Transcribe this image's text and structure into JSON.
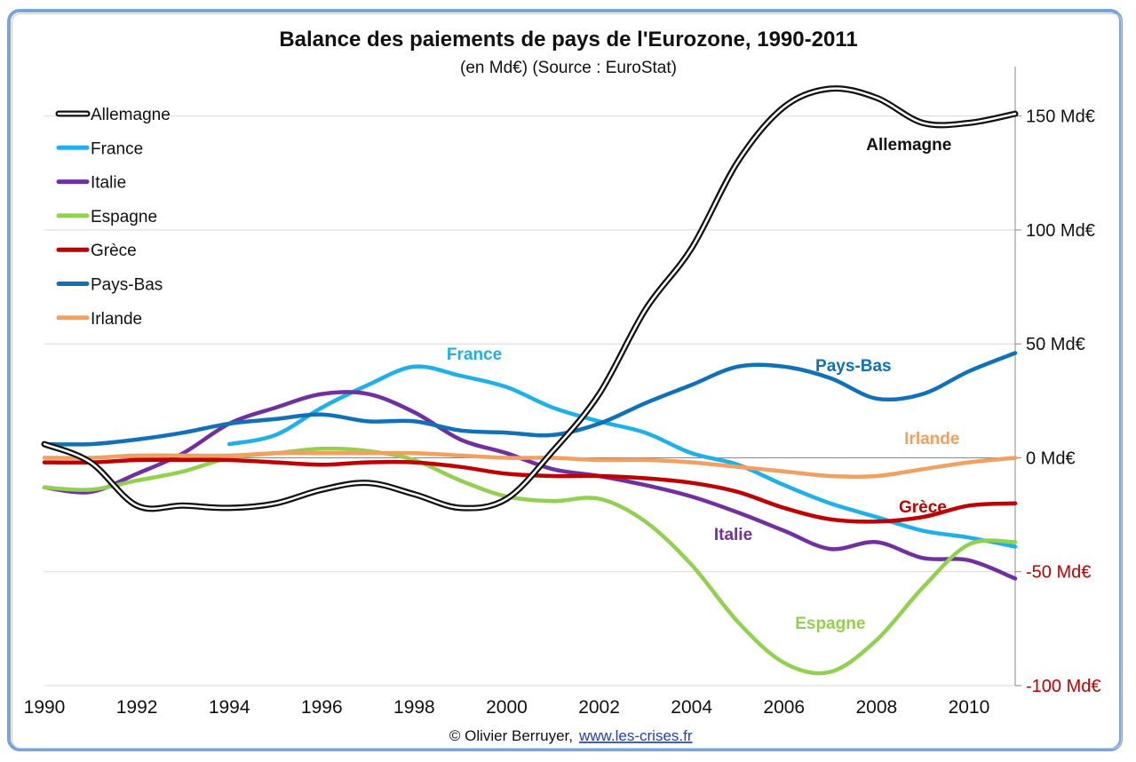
{
  "chart_data": {
    "type": "line",
    "title": "Balance des paiements de pays de l'Eurozone, 1990-2011",
    "subtitle": "(en Md€) (Source : EuroStat)",
    "xlabel": "",
    "ylabel": "",
    "xlim": [
      1990,
      2011
    ],
    "ylim": [
      -100,
      160
    ],
    "x_ticks": [
      "1990",
      "1992",
      "1994",
      "1996",
      "1998",
      "2000",
      "2002",
      "2004",
      "2006",
      "2008",
      "2010"
    ],
    "y_ticks": [
      {
        "value": 150,
        "label": "150 Md€"
      },
      {
        "value": 100,
        "label": "100 Md€"
      },
      {
        "value": 50,
        "label": "50 Md€"
      },
      {
        "value": 0,
        "label": "0 Md€"
      },
      {
        "value": -50,
        "label": "-50 Md€"
      },
      {
        "value": -100,
        "label": "-100 Md€"
      }
    ],
    "grid": true,
    "legend_position": "top-left",
    "x": [
      1990,
      1991,
      1992,
      1993,
      1994,
      1995,
      1996,
      1997,
      1998,
      1999,
      2000,
      2001,
      2002,
      2003,
      2004,
      2005,
      2006,
      2007,
      2008,
      2009,
      2010,
      2011
    ],
    "series": [
      {
        "name": "Allemagne",
        "color": "#111111",
        "style": "double",
        "label": "Allemagne",
        "label_x": 2008.7,
        "label_y": 135,
        "values": [
          6,
          -2,
          -21,
          -21,
          -22,
          -20,
          -14,
          -11,
          -16,
          -22,
          -18,
          3,
          28,
          65,
          92,
          130,
          154,
          162,
          158,
          147,
          147,
          151
        ]
      },
      {
        "name": "France",
        "color": "#1fb0e8",
        "style": "solid",
        "label": "France",
        "label_x": 1999.3,
        "label_y": 43,
        "values": [
          null,
          null,
          null,
          null,
          6,
          10,
          22,
          32,
          40,
          36,
          31,
          22,
          16,
          11,
          2,
          -3,
          -12,
          -20,
          -26,
          -32,
          -35,
          -39
        ]
      },
      {
        "name": "Italie",
        "color": "#7030a0",
        "style": "solid",
        "label": "Italie",
        "label_x": 2004.9,
        "label_y": -36,
        "values": [
          -13,
          -15,
          -7,
          2,
          15,
          22,
          28,
          28,
          20,
          8,
          2,
          -5,
          -8,
          -12,
          -17,
          -24,
          -32,
          -40,
          -37,
          -44,
          -45,
          -53
        ]
      },
      {
        "name": "Espagne",
        "color": "#92d050",
        "style": "solid",
        "label": "Espagne",
        "label_x": 2007.0,
        "label_y": -75,
        "values": [
          -13,
          -14,
          -10,
          -6,
          0,
          2,
          4,
          3,
          -1,
          -10,
          -17,
          -19,
          -18,
          -28,
          -47,
          -72,
          -90,
          -94,
          -80,
          -57,
          -38,
          -37
        ]
      },
      {
        "name": "Grèce",
        "color": "#c00000",
        "style": "solid",
        "label": "Grèce",
        "label_x": 2009.0,
        "label_y": -24,
        "values": [
          -2,
          -2,
          -1,
          -1,
          -1,
          -2,
          -3,
          -2,
          -2,
          -4,
          -7,
          -8,
          -8,
          -9,
          -11,
          -15,
          -22,
          -27,
          -28,
          -26,
          -21,
          -20
        ]
      },
      {
        "name": "Pays-Bas",
        "color": "#1070b8",
        "style": "solid",
        "label": "Pays-Bas",
        "label_x": 2007.5,
        "label_y": 38,
        "values": [
          6,
          6,
          8,
          11,
          15,
          17,
          19,
          16,
          16,
          12,
          11,
          10,
          15,
          24,
          32,
          40,
          40,
          35,
          26,
          28,
          38,
          46
        ]
      },
      {
        "name": "Irlande",
        "color": "#f0a060",
        "style": "solid",
        "label": "Irlande",
        "label_x": 2009.2,
        "label_y": 6,
        "values": [
          0,
          0,
          1,
          1,
          1,
          2,
          2,
          2,
          2,
          1,
          0,
          0,
          -1,
          -1,
          -2,
          -4,
          -6,
          -8,
          -8,
          -5,
          -2,
          0
        ]
      }
    ],
    "credit": "© Olivier Berruyer,",
    "credit_link": "www.les-crises.fr"
  }
}
